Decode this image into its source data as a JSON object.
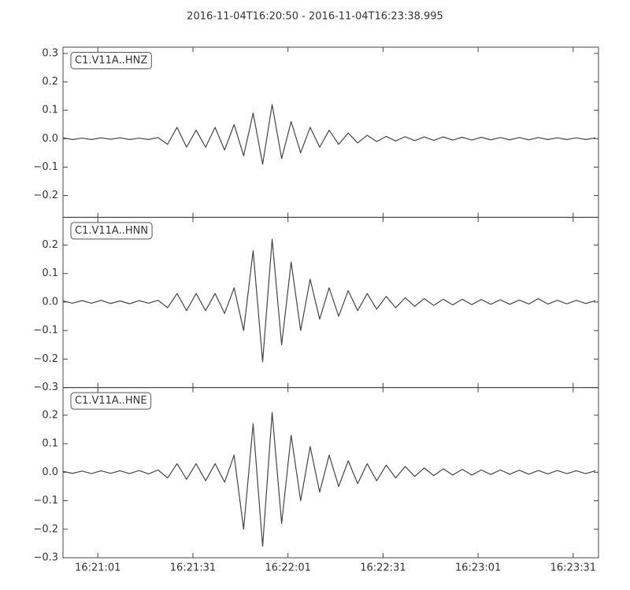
{
  "title": "2016-11-04T16:20:50  -  2016-11-04T16:23:38.995",
  "chart_data": [
    {
      "type": "line",
      "label": "C1.V11A..HNZ",
      "color": "#454545",
      "x": [
        "16:20:50",
        "16:20:53",
        "16:20:56",
        "16:20:59",
        "16:21:02",
        "16:21:05",
        "16:21:08",
        "16:21:11",
        "16:21:14",
        "16:21:17",
        "16:21:20",
        "16:21:23",
        "16:21:26",
        "16:21:29",
        "16:21:32",
        "16:21:35",
        "16:21:38",
        "16:21:41",
        "16:21:44",
        "16:21:47",
        "16:21:50",
        "16:21:53",
        "16:21:56",
        "16:21:59",
        "16:22:02",
        "16:22:05",
        "16:22:08",
        "16:22:11",
        "16:22:14",
        "16:22:17",
        "16:22:20",
        "16:22:23",
        "16:22:26",
        "16:22:29",
        "16:22:32",
        "16:22:35",
        "16:22:38",
        "16:22:41",
        "16:22:44",
        "16:22:47",
        "16:22:50",
        "16:22:53",
        "16:22:56",
        "16:22:59",
        "16:23:02",
        "16:23:05",
        "16:23:08",
        "16:23:11",
        "16:23:14",
        "16:23:17",
        "16:23:20",
        "16:23:23",
        "16:23:26",
        "16:23:29",
        "16:23:32",
        "16:23:35",
        "16:23:38"
      ],
      "values": [
        0.003,
        -0.003,
        0.002,
        -0.003,
        0.003,
        -0.002,
        0.003,
        -0.003,
        0.002,
        -0.003,
        0.004,
        -0.02,
        0.04,
        -0.03,
        0.03,
        -0.03,
        0.04,
        -0.04,
        0.05,
        -0.06,
        0.09,
        -0.09,
        0.12,
        -0.07,
        0.06,
        -0.05,
        0.04,
        -0.03,
        0.03,
        -0.02,
        0.02,
        -0.015,
        0.012,
        -0.01,
        0.008,
        -0.008,
        0.007,
        -0.007,
        0.006,
        -0.006,
        0.006,
        -0.005,
        0.005,
        -0.005,
        0.005,
        -0.004,
        0.004,
        -0.004,
        0.004,
        -0.004,
        0.004,
        -0.003,
        0.003,
        -0.003,
        0.003,
        -0.003,
        0.003
      ],
      "xlim": [
        "16:20:50",
        "16:23:38.995"
      ],
      "ylim": [
        -0.277,
        0.322
      ],
      "yticks": [
        {
          "value": -0.2,
          "label": "−0.2"
        },
        {
          "value": -0.1,
          "label": "−0.1"
        },
        {
          "value": 0,
          "label": "0.0"
        },
        0.1,
        0.2,
        0.3
      ]
    },
    {
      "type": "line",
      "label": "C1.V11A..HNN",
      "color": "#454545",
      "x": [
        "16:20:50",
        "16:20:53",
        "16:20:56",
        "16:20:59",
        "16:21:02",
        "16:21:05",
        "16:21:08",
        "16:21:11",
        "16:21:14",
        "16:21:17",
        "16:21:20",
        "16:21:23",
        "16:21:26",
        "16:21:29",
        "16:21:32",
        "16:21:35",
        "16:21:38",
        "16:21:41",
        "16:21:44",
        "16:21:47",
        "16:21:50",
        "16:21:53",
        "16:21:56",
        "16:21:59",
        "16:22:02",
        "16:22:05",
        "16:22:08",
        "16:22:11",
        "16:22:14",
        "16:22:17",
        "16:22:20",
        "16:22:23",
        "16:22:26",
        "16:22:29",
        "16:22:32",
        "16:22:35",
        "16:22:38",
        "16:22:41",
        "16:22:44",
        "16:22:47",
        "16:22:50",
        "16:22:53",
        "16:22:56",
        "16:22:59",
        "16:23:02",
        "16:23:05",
        "16:23:08",
        "16:23:11",
        "16:23:14",
        "16:23:17",
        "16:23:20",
        "16:23:23",
        "16:23:26",
        "16:23:29",
        "16:23:32",
        "16:23:35",
        "16:23:38"
      ],
      "values": [
        0.004,
        -0.004,
        0.005,
        -0.004,
        0.006,
        -0.005,
        0.004,
        -0.006,
        0.005,
        -0.004,
        0.006,
        -0.02,
        0.03,
        -0.03,
        0.03,
        -0.03,
        0.03,
        -0.04,
        0.05,
        -0.1,
        0.18,
        -0.21,
        0.22,
        -0.15,
        0.14,
        -0.1,
        0.08,
        -0.06,
        0.05,
        -0.05,
        0.04,
        -0.03,
        0.03,
        -0.025,
        0.02,
        -0.02,
        0.015,
        -0.015,
        0.012,
        -0.012,
        0.01,
        -0.01,
        0.01,
        -0.009,
        0.009,
        -0.008,
        0.008,
        -0.008,
        0.007,
        -0.007,
        0.012,
        -0.007,
        0.006,
        -0.006,
        0.006,
        -0.005,
        0.005
      ],
      "xlim": [
        "16:20:50",
        "16:23:38.995"
      ],
      "ylim": [
        -0.3,
        0.297
      ],
      "yticks": [
        {
          "value": -0.3,
          "label": "−0.3"
        },
        {
          "value": -0.2,
          "label": "−0.2"
        },
        {
          "value": -0.1,
          "label": "−0.1"
        },
        {
          "value": 0,
          "label": "0.0"
        },
        0.1,
        0.2
      ]
    },
    {
      "type": "line",
      "label": "C1.V11A..HNE",
      "color": "#454545",
      "x": [
        "16:20:50",
        "16:20:53",
        "16:20:56",
        "16:20:59",
        "16:21:02",
        "16:21:05",
        "16:21:08",
        "16:21:11",
        "16:21:14",
        "16:21:17",
        "16:21:20",
        "16:21:23",
        "16:21:26",
        "16:21:29",
        "16:21:32",
        "16:21:35",
        "16:21:38",
        "16:21:41",
        "16:21:44",
        "16:21:47",
        "16:21:50",
        "16:21:53",
        "16:21:56",
        "16:21:59",
        "16:22:02",
        "16:22:05",
        "16:22:08",
        "16:22:11",
        "16:22:14",
        "16:22:17",
        "16:22:20",
        "16:22:23",
        "16:22:26",
        "16:22:29",
        "16:22:32",
        "16:22:35",
        "16:22:38",
        "16:22:41",
        "16:22:44",
        "16:22:47",
        "16:22:50",
        "16:22:53",
        "16:22:56",
        "16:22:59",
        "16:23:02",
        "16:23:05",
        "16:23:08",
        "16:23:11",
        "16:23:14",
        "16:23:17",
        "16:23:20",
        "16:23:23",
        "16:23:26",
        "16:23:29",
        "16:23:32",
        "16:23:35",
        "16:23:38"
      ],
      "values": [
        0.003,
        -0.004,
        0.004,
        -0.005,
        0.005,
        -0.004,
        0.005,
        -0.005,
        0.006,
        -0.006,
        0.008,
        -0.02,
        0.03,
        -0.025,
        0.03,
        -0.03,
        0.03,
        -0.035,
        0.06,
        -0.2,
        0.17,
        -0.26,
        0.21,
        -0.18,
        0.13,
        -0.1,
        0.09,
        -0.07,
        0.06,
        -0.05,
        0.04,
        -0.04,
        0.03,
        -0.03,
        0.025,
        -0.02,
        0.02,
        -0.015,
        0.015,
        -0.012,
        0.012,
        -0.01,
        0.01,
        -0.01,
        0.008,
        -0.008,
        0.008,
        -0.007,
        0.007,
        -0.007,
        0.006,
        -0.006,
        0.006,
        -0.005,
        0.005,
        -0.005,
        0.005
      ],
      "xlim": [
        "16:20:50",
        "16:23:38.995"
      ],
      "ylim": [
        -0.3,
        0.297
      ],
      "yticks": [
        {
          "value": -0.3,
          "label": "−0.3"
        },
        {
          "value": -0.2,
          "label": "−0.2"
        },
        {
          "value": -0.1,
          "label": "−0.1"
        },
        {
          "value": 0,
          "label": "0.0"
        },
        0.1,
        0.2
      ],
      "xticks": [
        "16:21:01",
        "16:21:31",
        "16:22:01",
        "16:22:31",
        "16:23:01",
        "16:23:31"
      ]
    }
  ]
}
